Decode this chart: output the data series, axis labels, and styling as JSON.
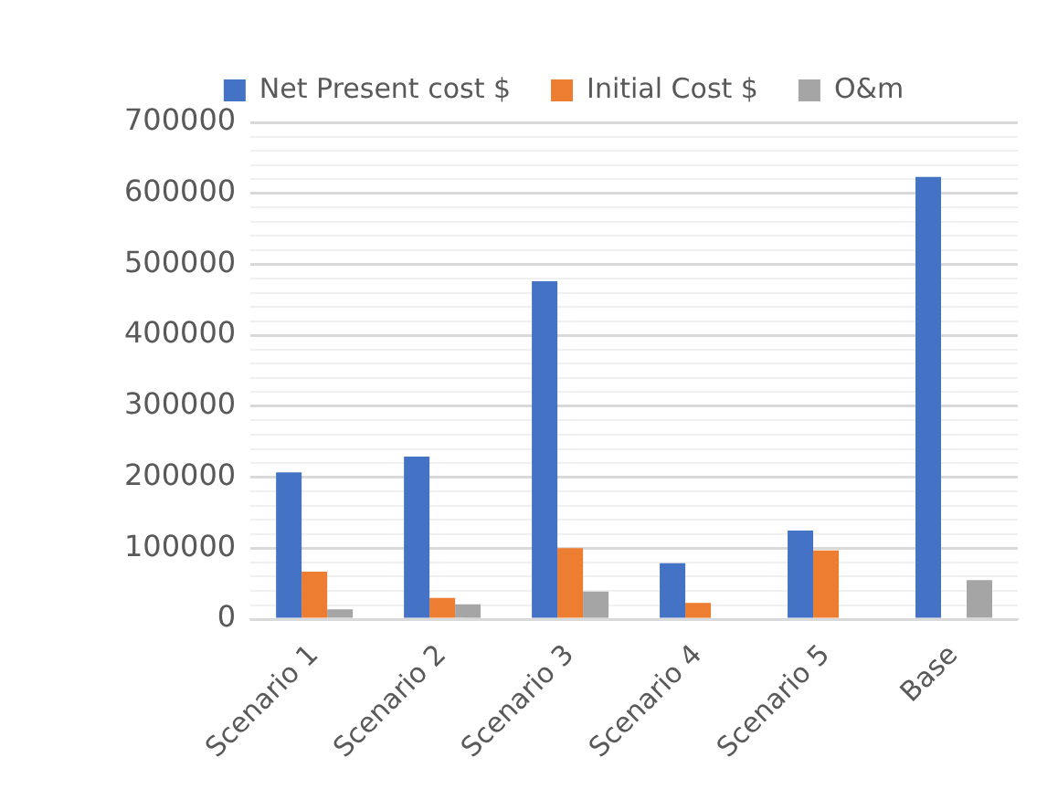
{
  "chart_data": {
    "type": "bar",
    "categories": [
      "Scenario 1",
      "Scenario 2",
      "Scenario 3",
      "Scenario 4",
      "Scenario 5",
      "Base"
    ],
    "series": [
      {
        "name": "Net Present cost $",
        "color": "#4472c4",
        "values": [
          207000,
          229000,
          476000,
          79000,
          125000,
          623000
        ]
      },
      {
        "name": "Initial Cost $",
        "color": "#ed7d31",
        "values": [
          67000,
          30000,
          100000,
          23000,
          97000,
          0
        ]
      },
      {
        "name": "O&m",
        "color": "#a5a5a5",
        "values": [
          14000,
          21000,
          39000,
          0,
          null,
          55000
        ]
      }
    ],
    "ylim": [
      0,
      700000
    ],
    "yticks": [
      0,
      {
        "value": 20000,
        "label": null
      },
      {
        "value": 40000,
        "label": null
      },
      {
        "value": 60000,
        "label": null
      },
      {
        "value": 80000,
        "label": null
      },
      100000,
      {
        "value": 120000,
        "label": null
      },
      {
        "value": 140000,
        "label": null
      },
      {
        "value": 160000,
        "label": null
      },
      {
        "value": 180000,
        "label": null
      },
      200000,
      {
        "value": 220000,
        "label": null
      },
      {
        "value": 240000,
        "label": null
      },
      {
        "value": 260000,
        "label": null
      },
      {
        "value": 280000,
        "label": null
      },
      300000,
      {
        "value": 320000,
        "label": null
      },
      {
        "value": 340000,
        "label": null
      },
      {
        "value": 360000,
        "label": null
      },
      {
        "value": 380000,
        "label": null
      },
      400000,
      {
        "value": 420000,
        "label": null
      },
      {
        "value": 440000,
        "label": null
      },
      {
        "value": 460000,
        "label": null
      },
      {
        "value": 480000,
        "label": null
      },
      500000,
      {
        "value": 520000,
        "label": null
      },
      {
        "value": 540000,
        "label": null
      },
      {
        "value": 560000,
        "label": null
      },
      {
        "value": 580000,
        "label": null
      },
      600000,
      {
        "value": 620000,
        "label": null
      },
      {
        "value": 640000,
        "label": null
      },
      {
        "value": 660000,
        "label": null
      },
      {
        "value": 680000,
        "label": null
      },
      700000
    ],
    "grid": "y",
    "legend": "top"
  }
}
